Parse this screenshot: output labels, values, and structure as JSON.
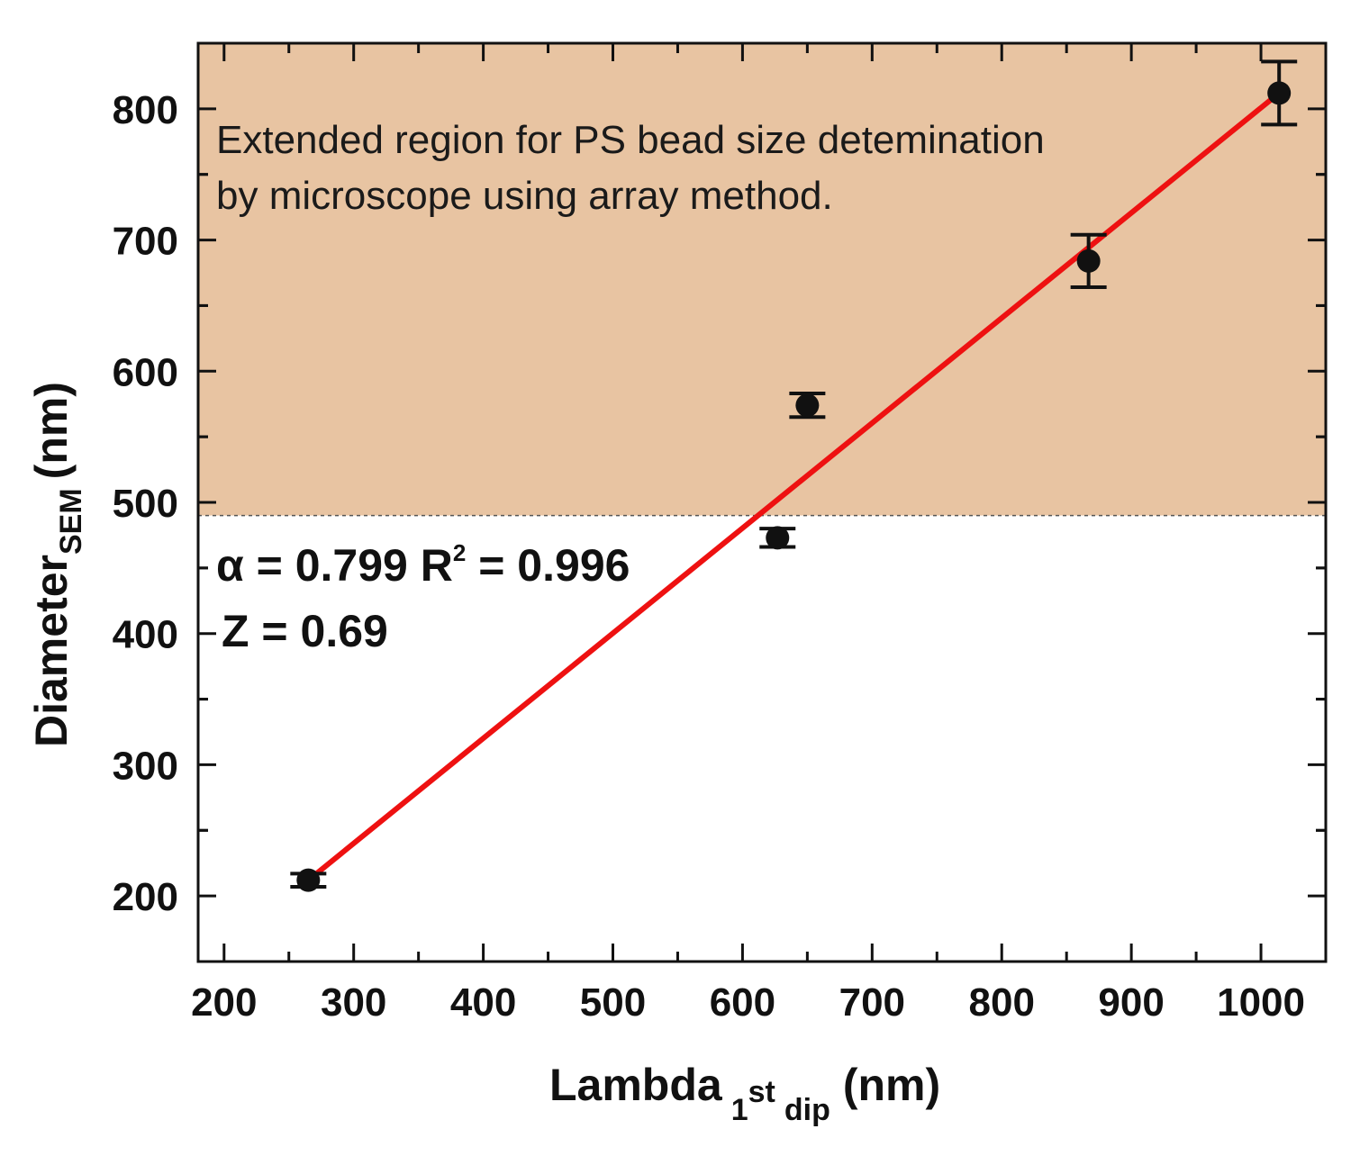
{
  "chart_data": {
    "type": "scatter",
    "xlabel": {
      "main": "Lambda",
      "sub": "dip",
      "sup": "st",
      "num": "1",
      "unit": "(nm)"
    },
    "ylabel": {
      "main": "Diameter",
      "sub": "SEM",
      "unit": "(nm)"
    },
    "xlim": [
      180,
      1050
    ],
    "ylim": [
      150,
      850
    ],
    "xticks": [
      200,
      300,
      400,
      500,
      600,
      700,
      800,
      900,
      1000
    ],
    "yticks": [
      200,
      300,
      400,
      500,
      600,
      700,
      800
    ],
    "xtick_labels": [
      "200",
      "300",
      "400",
      "500",
      "600",
      "700",
      "800",
      "900",
      "1000"
    ],
    "ytick_labels": [
      "200",
      "300",
      "400",
      "500",
      "600",
      "700",
      "800"
    ],
    "points": [
      {
        "x": 265,
        "y": 212,
        "err": 5
      },
      {
        "x": 627,
        "y": 473,
        "err": 7
      },
      {
        "x": 650,
        "y": 574,
        "err": 9
      },
      {
        "x": 867,
        "y": 684,
        "err": 20
      },
      {
        "x": 1014,
        "y": 812,
        "err": 24
      }
    ],
    "fit_line": {
      "x": [
        265,
        1014
      ],
      "y": [
        212,
        812
      ],
      "color": "#ee1111"
    },
    "shaded_region": {
      "y_from": 490,
      "y_to": 850,
      "color": "#e8c4a2"
    },
    "region_text": [
      "Extended region for PS bead size detemination",
      "by microscope using array method."
    ],
    "stats": {
      "alpha_symbol": "α",
      "alpha_rest": " = 0.799 R",
      "r_sup": "2",
      "r_rest": " = 0.996",
      "z_line": "Z = 0.69"
    }
  }
}
